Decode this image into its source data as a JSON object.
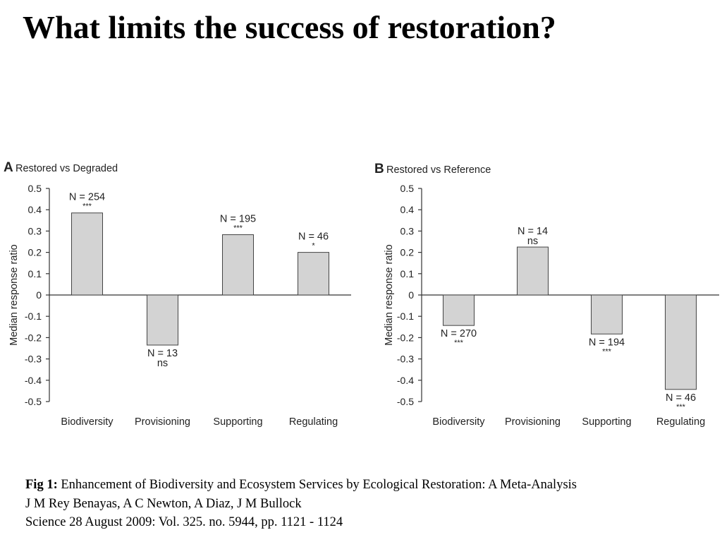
{
  "slide": {
    "title": "What limits the success of restoration?"
  },
  "chart_data": [
    {
      "type": "bar",
      "panel_letter": "A",
      "title": "Restored vs Degraded",
      "xlabel": "",
      "ylabel": "Median response ratio",
      "ylim": [
        -0.5,
        0.5
      ],
      "yticks": [
        "0.5",
        "0.4",
        "0.3",
        "0.2",
        "0.1",
        "0",
        "-0.1",
        "-0.2",
        "-0.3",
        "-0.4",
        "-0.5"
      ],
      "categories": [
        "Biodiversity",
        "Provisioning",
        "Supporting",
        "Regulating"
      ],
      "values": [
        0.385,
        -0.235,
        0.283,
        0.2
      ],
      "n_labels": [
        "N = 254",
        "N = 13",
        "N = 195",
        "N = 46"
      ],
      "significance": [
        "***",
        "ns",
        "***",
        "*"
      ],
      "grid": false,
      "bar_color": "#d3d3d3"
    },
    {
      "type": "bar",
      "panel_letter": "B",
      "title": "Restored vs Reference",
      "xlabel": "",
      "ylabel": "Median response ratio",
      "ylim": [
        -0.5,
        0.5
      ],
      "yticks": [
        "0.5",
        "0.4",
        "0.3",
        "0.2",
        "0.1",
        "0",
        "-0.1",
        "-0.2",
        "-0.3",
        "-0.4",
        "-0.5"
      ],
      "categories": [
        "Biodiversity",
        "Provisioning",
        "Supporting",
        "Regulating"
      ],
      "values": [
        -0.143,
        0.225,
        -0.183,
        -0.443
      ],
      "n_labels": [
        "N = 270",
        "N = 14",
        "N = 194",
        "N = 46"
      ],
      "significance": [
        "***",
        "ns",
        "***",
        "***"
      ],
      "grid": false,
      "bar_color": "#d3d3d3"
    }
  ],
  "caption": {
    "fig_label": "Fig 1:",
    "article_title": " Enhancement of Biodiversity and Ecosystem Services by Ecological Restoration: A Meta-Analysis",
    "authors": "J M Rey Benayas, A C Newton, A Diaz, J M Bullock",
    "citation": "Science 28 August 2009:  Vol. 325. no. 5944, pp. 1121 - 1124"
  }
}
